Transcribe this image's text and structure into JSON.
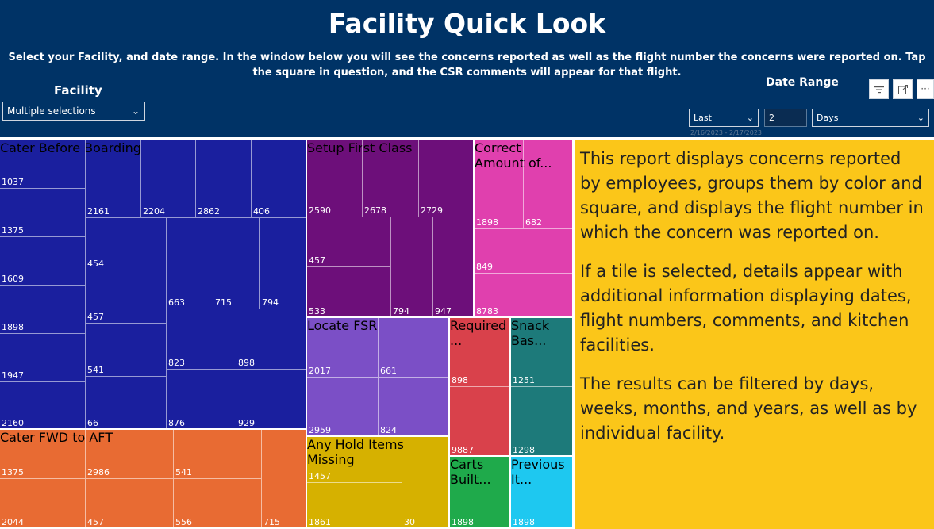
{
  "header": {
    "title": "Facility Quick Look",
    "subtitle": "Select your Facility, and date range. In the window below you will see the concerns reported as well as the flight number the concerns were reported on. Tap the square in question, and the CSR comments will appear for that flight."
  },
  "facility": {
    "label": "Facility",
    "value": "Multiple selections"
  },
  "date_range": {
    "label": "Date Range",
    "mode": "Last",
    "count": "2",
    "unit": "Days",
    "applied_range": "2/16/2023 - 2/17/2023"
  },
  "visual_icons": [
    "filter-icon",
    "focus-mode-icon",
    "more-options-icon"
  ],
  "colors": {
    "header_bg": "#003366",
    "blue": "#1a1f9e",
    "orange": "#e86b33",
    "purple": "#6d0f7a",
    "pink": "#e040ae",
    "lavender": "#7b4fc6",
    "gold": "#d6b100",
    "red": "#d9414b",
    "teal": "#1d7a7a",
    "green": "#1faa4b",
    "cyan": "#1ec8f0",
    "note_bg": "#fbc619"
  },
  "treemap": {
    "groups": [
      {
        "name": "Cater Before Boarding",
        "label": "Cater Before Boarding",
        "color": "blue"
      },
      {
        "name": "Cater FWD to AFT",
        "label": "Cater FWD to AFT",
        "color": "orange"
      },
      {
        "name": "Setup First Class",
        "label": "Setup First Class",
        "color": "purple"
      },
      {
        "name": "Correct Amount of...",
        "label": "Correct Amount of...",
        "color": "pink"
      },
      {
        "name": "Locate FSR",
        "label": "Locate FSR",
        "color": "lavender"
      },
      {
        "name": "Required ...",
        "label": "Required ...",
        "color": "red"
      },
      {
        "name": "Snack Bas...",
        "label": "Snack Bas...",
        "color": "teal"
      },
      {
        "name": "Any Hold Items Missing",
        "label": "Any Hold Items Missing",
        "color": "gold"
      },
      {
        "name": "Carts Built...",
        "label": "Carts Built...",
        "color": "green"
      },
      {
        "name": "Previous It...",
        "label": "Previous It...",
        "color": "cyan"
      }
    ],
    "flights": {
      "blue": [
        "1037",
        "1375",
        "1609",
        "1898",
        "1947",
        "2160",
        "2161",
        "2204",
        "2862",
        "406",
        "454",
        "457",
        "541",
        "66",
        "663",
        "715",
        "794",
        "823",
        "898",
        "876",
        "929"
      ],
      "orange": [
        "1375",
        "2986",
        "541",
        "2044",
        "457",
        "556",
        "715"
      ],
      "purple": [
        "2590",
        "2678",
        "2729",
        "457",
        "533",
        "794",
        "947"
      ],
      "pink": [
        "1898",
        "682",
        "849",
        "8783"
      ],
      "lavender": [
        "2017",
        "661",
        "2959",
        "824"
      ],
      "red": [
        "898",
        "9887"
      ],
      "teal": [
        "1251",
        "1298"
      ],
      "gold": [
        "1457",
        "1861",
        "30"
      ],
      "green": [
        "1898"
      ],
      "cyan": [
        "1898"
      ]
    }
  },
  "note": {
    "p1": "This report displays concerns reported by employees, groups them by color and square, and displays the flight number in which the concern was reported on.",
    "p2": "If a tile is selected, details appear with additional information displaying dates, flight numbers, comments, and kitchen facilities.",
    "p3": "The results can be filtered by days, weeks, months, and years, as well as by individual facility."
  }
}
